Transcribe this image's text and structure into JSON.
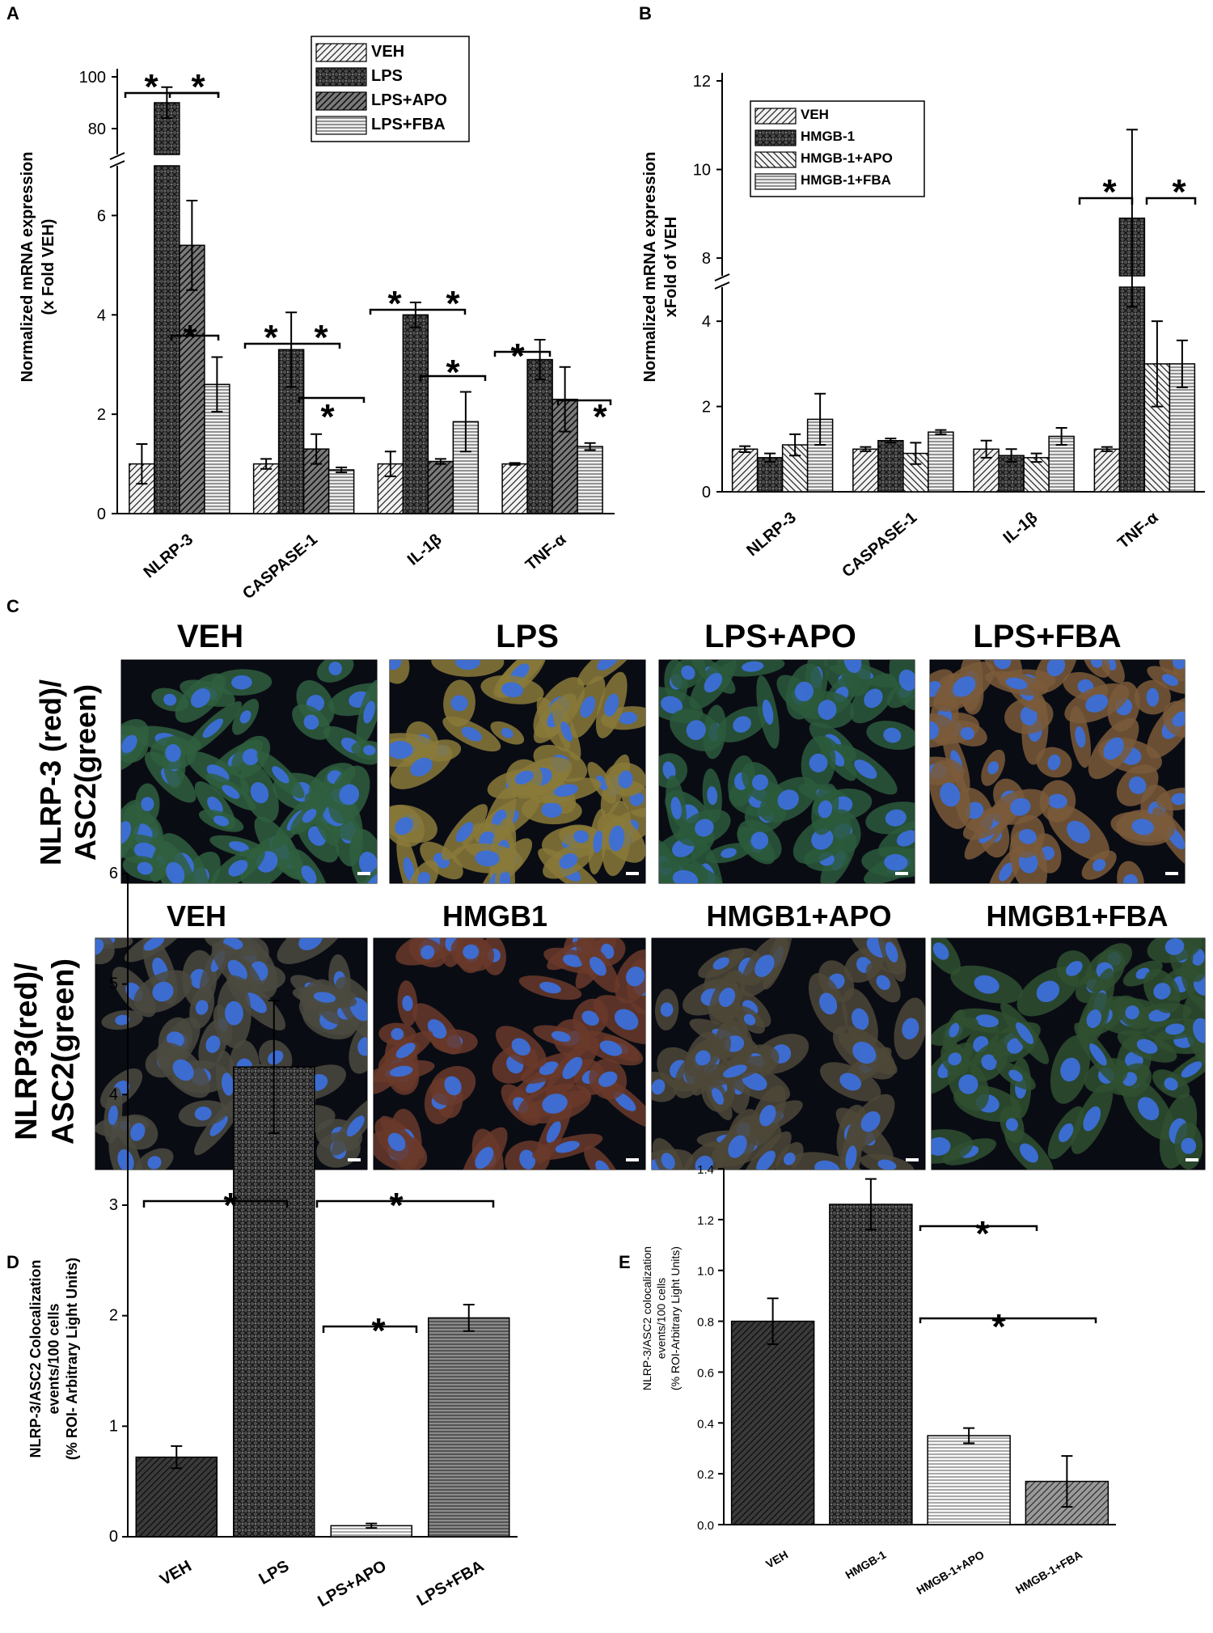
{
  "panels": {
    "A": "A",
    "B": "B",
    "C": "C",
    "D": "D",
    "E": "E"
  },
  "patterns": {
    "VEH": "diag",
    "LPS": "cross",
    "LPS+APO": "diagdense",
    "LPS+FBA": "horiz",
    "HMGB-1": "cross",
    "HMGB-1+APO": "diagback",
    "HMGB-1+FBA": "horiz"
  },
  "chart_data": [
    {
      "id": "A",
      "type": "bar",
      "ylabel": "Normalized mRNA expression\n(x Fold VEH)",
      "categories": [
        "NLRP-3",
        "CASPASE-1",
        "IL-1β",
        "TNF-α"
      ],
      "broken_axis": true,
      "y_lower_ticks": [
        "0",
        "2",
        "4",
        "6"
      ],
      "y_upper_ticks": [
        "80",
        "100"
      ],
      "series": [
        {
          "name": "VEH",
          "values": [
            1.0,
            1.0,
            1.0,
            1.0
          ],
          "errors": [
            0.4,
            0.1,
            0.25,
            0.02
          ]
        },
        {
          "name": "LPS",
          "values": [
            90,
            3.3,
            4.0,
            3.1
          ],
          "errors": [
            6,
            0.75,
            0.25,
            0.4
          ]
        },
        {
          "name": "LPS+APO",
          "values": [
            5.4,
            1.3,
            1.05,
            2.3
          ],
          "errors": [
            0.9,
            0.3,
            0.05,
            0.65
          ]
        },
        {
          "name": "LPS+FBA",
          "values": [
            2.6,
            0.88,
            1.85,
            1.35
          ],
          "errors": [
            0.55,
            0.05,
            0.6,
            0.07
          ]
        }
      ],
      "significance_mark": "*"
    },
    {
      "id": "B",
      "type": "bar",
      "ylabel": "Normalized mRNA expression\nxFold of VEH",
      "categories": [
        "NLRP-3",
        "CASPASE-1",
        "IL-1β",
        "TNF-α"
      ],
      "broken_axis": true,
      "y_lower_ticks": [
        "0",
        "2",
        "4"
      ],
      "y_upper_ticks": [
        "8",
        "10",
        "12"
      ],
      "series": [
        {
          "name": "VEH",
          "values": [
            1.0,
            1.0,
            1.0,
            1.0
          ],
          "errors": [
            0.07,
            0.05,
            0.2,
            0.05
          ]
        },
        {
          "name": "HMGB-1",
          "values": [
            0.8,
            1.2,
            0.85,
            8.9
          ],
          "errors": [
            0.1,
            0.05,
            0.15,
            2.0
          ]
        },
        {
          "name": "HMGB-1+APO",
          "values": [
            1.1,
            0.9,
            0.8,
            3.0
          ],
          "errors": [
            0.25,
            0.25,
            0.1,
            1.0
          ]
        },
        {
          "name": "HMGB-1+FBA",
          "values": [
            1.7,
            1.4,
            1.3,
            3.0
          ],
          "errors": [
            0.6,
            0.05,
            0.2,
            0.55
          ]
        }
      ],
      "significance_mark": "*"
    },
    {
      "id": "D",
      "type": "bar",
      "ylabel": "NLRP-3/ASC2 Colocalization\nevents/100 cells\n(% ROI- Arbitrary Light Units)",
      "categories": [
        "VEH",
        "LPS",
        "LPS+APO",
        "LPS+FBA"
      ],
      "ylim": [
        0,
        6
      ],
      "y_ticks": [
        "0",
        "1",
        "2",
        "3",
        "4",
        "5",
        "6"
      ],
      "values": [
        0.72,
        4.25,
        0.1,
        1.98
      ],
      "errors": [
        0.1,
        0.6,
        0.02,
        0.12
      ],
      "significance_mark": "*"
    },
    {
      "id": "E",
      "type": "bar",
      "ylabel": "NLRP-3/ASC2 colocalization\nevents/100 cells\n(% ROI-Arbitrary Light Units)",
      "categories": [
        "VEH",
        "HMGB-1",
        "HMGB-1+APO",
        "HMGB-1+FBA"
      ],
      "ylim": [
        0,
        1.4
      ],
      "y_ticks": [
        "0.0",
        "0.2",
        "0.4",
        "0.6",
        "0.8",
        "1.0",
        "1.2",
        "1.4"
      ],
      "values": [
        0.8,
        1.26,
        0.35,
        0.17
      ],
      "errors": [
        0.09,
        0.1,
        0.03,
        0.1
      ],
      "significance_mark": "*"
    }
  ],
  "micrographs": {
    "row1": {
      "row_label": "NLRP-3 (red)/\nASC2(green)",
      "titles": [
        "VEH",
        "LPS",
        "LPS+APO",
        "LPS+FBA"
      ],
      "tints": [
        "#2f5f3e",
        "#8a7a3a",
        "#2b5a3c",
        "#7a5a3a"
      ]
    },
    "row2": {
      "row_label": "NLRP3(red)/\nASC2(green)",
      "titles": [
        "VEH",
        "HMGB1",
        "HMGB1+APO",
        "HMGB1+FBA"
      ],
      "tints": [
        "#4b4a40",
        "#6a3a2a",
        "#4d4838",
        "#2f5030"
      ]
    }
  }
}
